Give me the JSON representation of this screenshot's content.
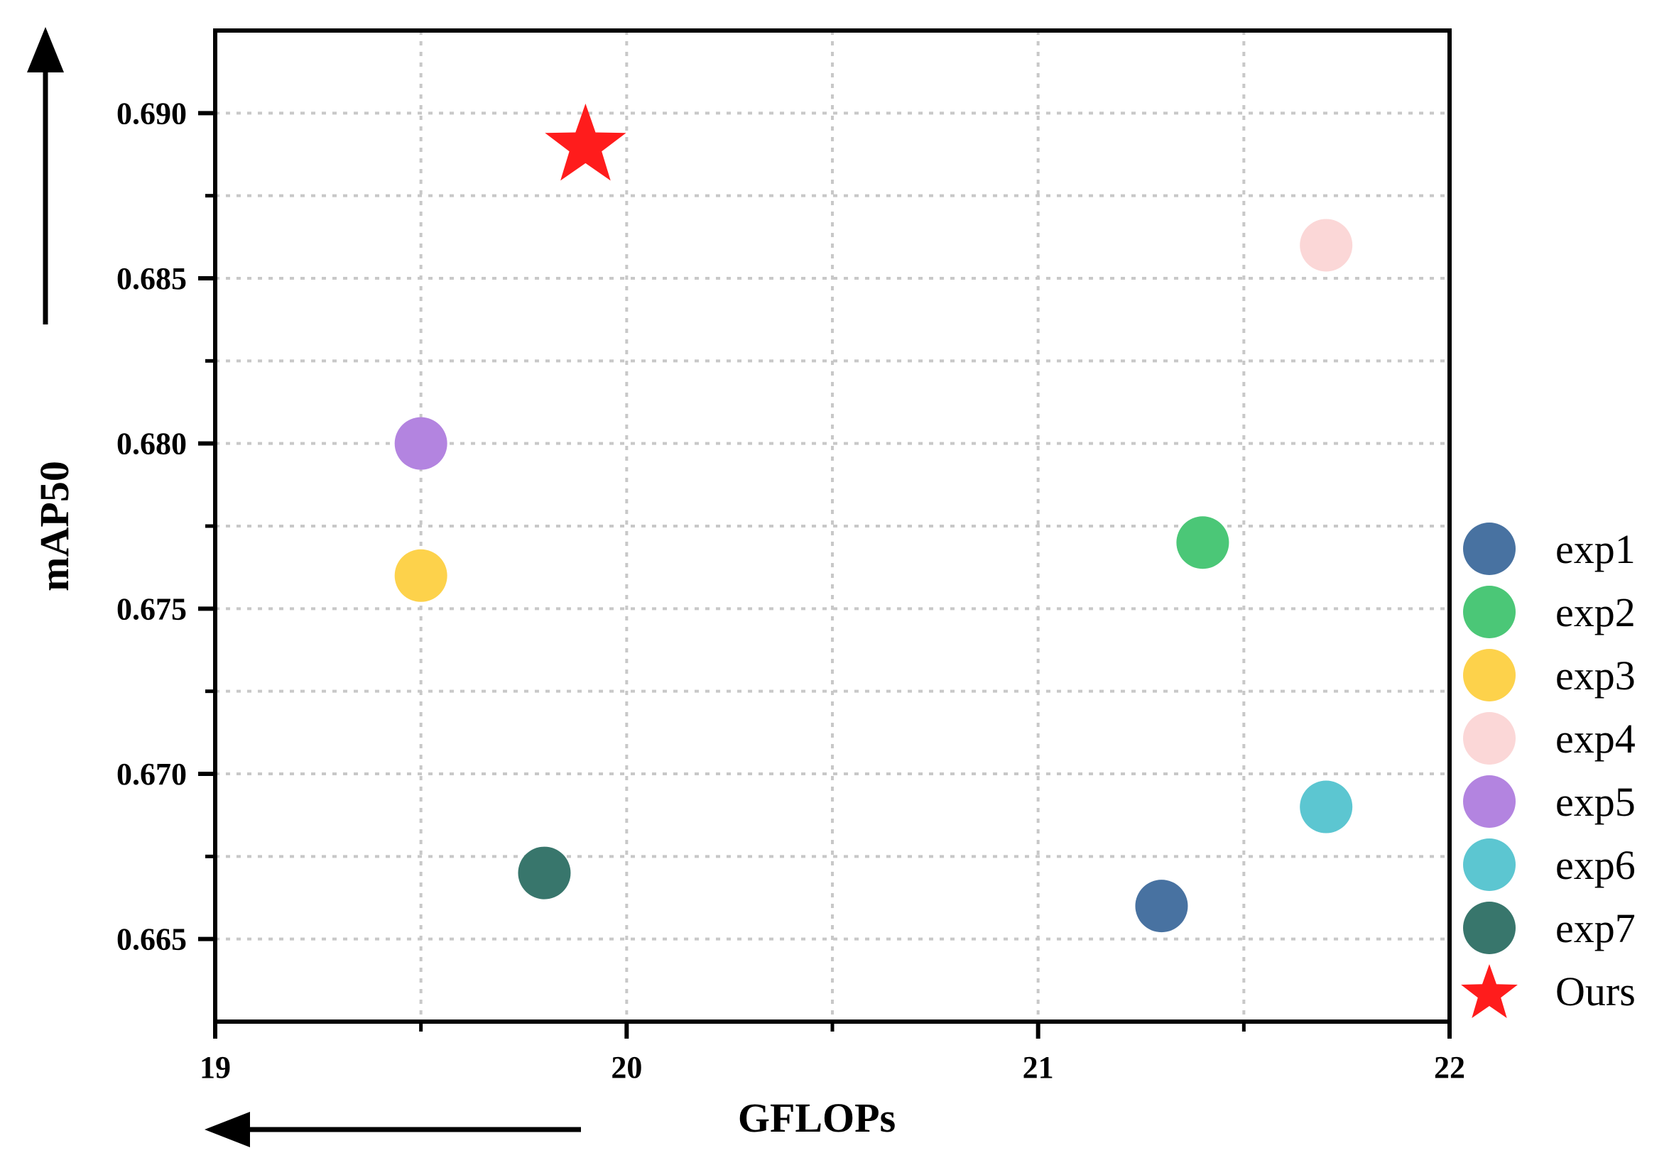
{
  "chart_data": {
    "type": "scatter",
    "xlabel": "GFLOPs",
    "ylabel": "mAP50",
    "xlim": [
      19,
      22
    ],
    "ylim": [
      0.6625,
      0.6925
    ],
    "x_ticks": [
      19,
      20,
      21,
      22
    ],
    "x_tick_labels": [
      "19",
      "20",
      "21",
      "22"
    ],
    "x_minor_ticks": [
      19.5,
      20.5,
      21.5
    ],
    "y_ticks": [
      0.665,
      0.67,
      0.675,
      0.68,
      0.685,
      0.69
    ],
    "y_tick_labels": [
      "0.665",
      "0.670",
      "0.675",
      "0.680",
      "0.685",
      "0.690"
    ],
    "y_minor_ticks": [
      0.6675,
      0.6725,
      0.6775,
      0.6825,
      0.6875
    ],
    "grid": true,
    "legend_position": "right",
    "series": [
      {
        "name": "exp1",
        "marker": "circle",
        "color": "#4872A1",
        "x": 21.3,
        "y": 0.666
      },
      {
        "name": "exp2",
        "marker": "circle",
        "color": "#4BC777",
        "x": 21.4,
        "y": 0.677
      },
      {
        "name": "exp3",
        "marker": "circle",
        "color": "#FDD24B",
        "x": 19.5,
        "y": 0.676
      },
      {
        "name": "exp4",
        "marker": "circle",
        "color": "#FBD7D7",
        "x": 21.7,
        "y": 0.686
      },
      {
        "name": "exp5",
        "marker": "circle",
        "color": "#B384E0",
        "x": 19.5,
        "y": 0.68
      },
      {
        "name": "exp6",
        "marker": "circle",
        "color": "#5CC6D1",
        "x": 21.7,
        "y": 0.669
      },
      {
        "name": "exp7",
        "marker": "circle",
        "color": "#38766C",
        "x": 19.8,
        "y": 0.667
      },
      {
        "name": "Ours",
        "marker": "star",
        "color": "#FF1C1C",
        "x": 19.9,
        "y": 0.689
      }
    ]
  }
}
